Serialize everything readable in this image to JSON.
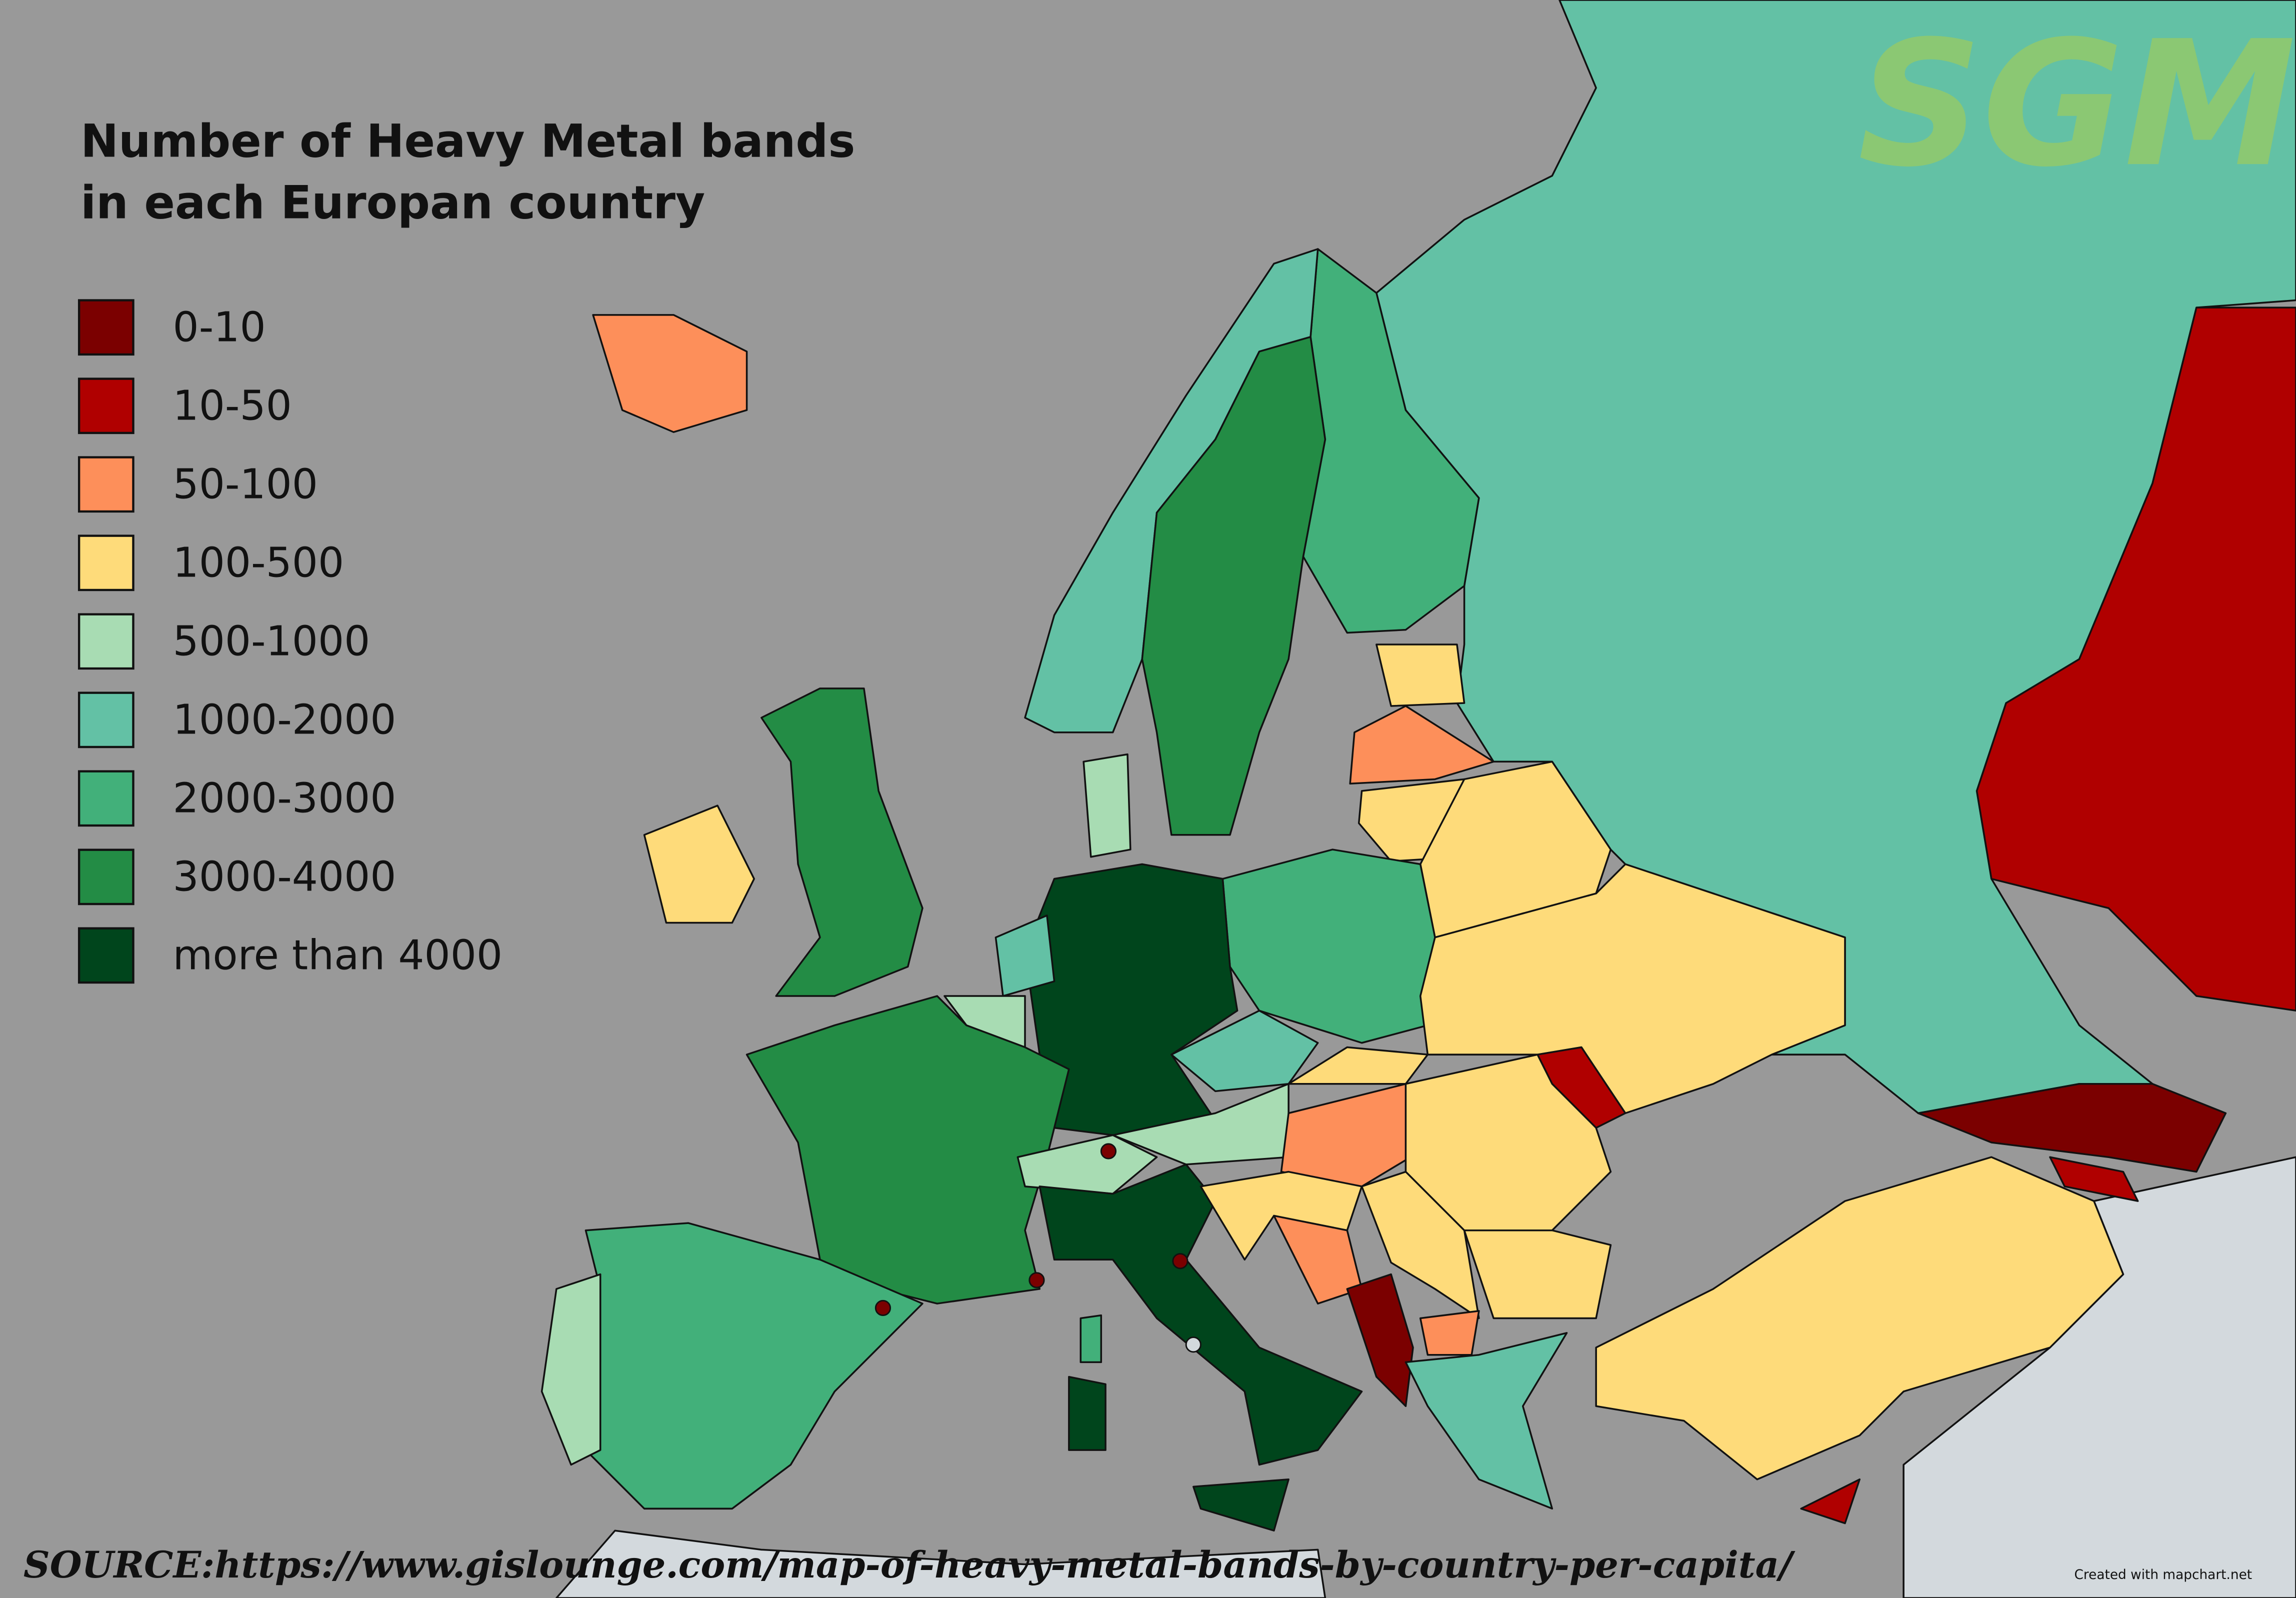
{
  "title": [
    "Number of Heavy Metal bands",
    "in each Europan country"
  ],
  "legend": [
    {
      "label": "0-10",
      "color": "#7b0000"
    },
    {
      "label": "10-50",
      "color": "#b00000"
    },
    {
      "label": "50-100",
      "color": "#fd8f5a"
    },
    {
      "label": "100-500",
      "color": "#fedb7a"
    },
    {
      "label": "500-1000",
      "color": "#a8dcb3"
    },
    {
      "label": "1000-2000",
      "color": "#63c1a5"
    },
    {
      "label": "2000-3000",
      "color": "#42b07a"
    },
    {
      "label": "3000-4000",
      "color": "#238c45"
    },
    {
      "label": "more than 4000",
      "color": "#00451c"
    }
  ],
  "watermark": "SGM",
  "source": "SOURCE:https://www.gislounge.com/map-of-heavy-metal-bands-by-country-per-capita/",
  "credit": "Created with mapchart.net"
}
